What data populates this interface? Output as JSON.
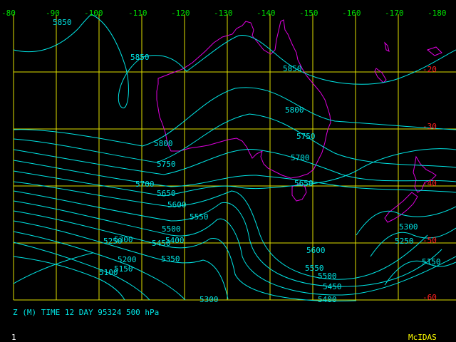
{
  "caption": "Z (M) TIME 12 DAY 95324 500 hPa",
  "frame_number": "1",
  "brand": "McIDAS",
  "colors": {
    "grid": "#e0e000",
    "coast": "#e000e0",
    "contour": "#00e5e5",
    "lon_label": "#00e000",
    "lat_label": "#ff2020",
    "brand": "#ffff00"
  },
  "longitude_labels": [
    "-80",
    "-90",
    "-100",
    "-110",
    "-120",
    "-130",
    "-140",
    "-150",
    "-160",
    "-170",
    "-180"
  ],
  "latitude_labels": [
    "-20",
    "-30",
    "-40",
    "-50",
    "-60"
  ],
  "contour_labels": [
    "5850",
    "5850",
    "5850",
    "5800",
    "5800",
    "5750",
    "5750",
    "5700",
    "5700",
    "5650",
    "5650",
    "5600",
    "5550",
    "5500",
    "5450",
    "5400",
    "5350",
    "5300",
    "5300",
    "5250",
    "5200",
    "5150",
    "5100",
    "5600",
    "5550",
    "5500",
    "5450",
    "5400",
    "5300",
    "5250",
    "5150"
  ]
}
